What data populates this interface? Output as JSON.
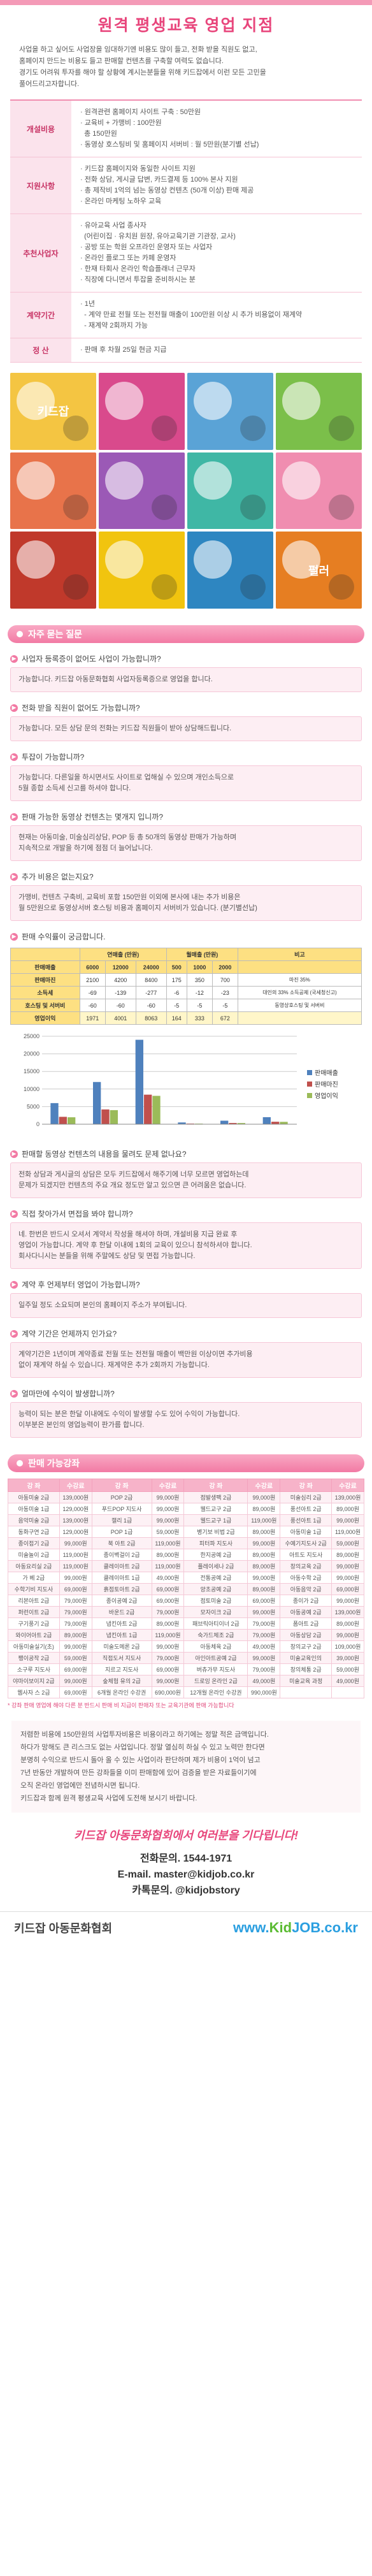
{
  "title": "원격 평생교육 영업 지점",
  "intro": [
    "사업을 하고 싶어도 사업장을 임대하기엔 비용도 많이 들고, 전화 받을 직원도 없고,",
    "홈페이지 만드는 비용도 들고 판매할 컨텐츠를 구축할 여력도 없습니다.",
    "경기도 어려워 투자를 해야 할 상황에 계시는분들을 위해 키드잡에서 이런 모든 고민을",
    "풀어드리고자합니다."
  ],
  "info": [
    {
      "label": "개설비용",
      "lines": [
        "· 원격관련 홈페이지 사이트 구축 : 50만원",
        "· 교육비 + 가맹비 : 100만원",
        "  총 150만원",
        "· 동영상 호스팅비 및 홈페이지 서버비 : 월 5만원(분기별 선납)"
      ]
    },
    {
      "label": "지원사항",
      "lines": [
        "· 키드잡 홈페이지와 동일한 사이트 지원",
        "· 전화 상담, 게시글 답변, 카드결제 등 100% 본사 지원",
        "· 총 제작비 1억의 넘는 동영상 컨텐츠 (50개 이상) 판매 제공",
        "· 온라인 마케팅 노하우 교육"
      ]
    },
    {
      "label": "추천사업자",
      "lines": [
        "· 유아교육 사업 종사자",
        "  (어린이집 · 유치원 원장, 유아교육기관 기관장, 교사)",
        "· 공방 또는 학원 오프라인 운영자 또는 사업자",
        "· 온라인 플로그 또는 카페 운영자",
        "· 한재 타회사 온라인 학습플래너 근무자",
        "· 직장에 다니면서 투잡을 준비하시는 분"
      ]
    },
    {
      "label": "계약기간",
      "lines": [
        "· 1년",
        "  - 계약 만료 전월 또는 전전월 매출이 100만원 이상 시 추가 비용없이 재계약",
        "  - 재계약 2회까지 가능"
      ]
    },
    {
      "label": "정 산",
      "lines": [
        "· 판매 후 차월 25일 현금 지급"
      ]
    }
  ],
  "photos": [
    {
      "label": "키드잡"
    },
    {
      "label": ""
    },
    {
      "label": ""
    },
    {
      "label": ""
    },
    {
      "label": ""
    },
    {
      "label": ""
    },
    {
      "label": ""
    },
    {
      "label": ""
    },
    {
      "label": ""
    },
    {
      "label": ""
    },
    {
      "label": ""
    },
    {
      "label": "펄러"
    }
  ],
  "faq_title": "자주 묻는 질문",
  "faq": [
    {
      "q": "사업자 등록증이 없어도 사업이 가능합니까?",
      "a": [
        "가능합니다. 키드잡 아동문화협회 사업자등록증으로 영업을 합니다."
      ]
    },
    {
      "q": "전화 받을 직원이 없어도 가능합니까?",
      "a": [
        "가능합니다. 모든 상담 문의 전화는 키드잡 직원들이 받아 상담해드립니다."
      ]
    },
    {
      "q": "투잡이 가능합니까?",
      "a": [
        "가능합니다. 다른일을 하시면서도 사이트로 업해실 수 있으며 개인소득으로",
        "5월 종합 소득세 신고를 하셔야 합니다."
      ]
    },
    {
      "q": "판매 가능한 동영상 컨텐츠는 몇개지 입니까?",
      "a": [
        "현재는 아동미술, 미술심리상담, POP 등 총 50개의 동영상 판매가 가능하며",
        "지속적으로 개발을 하기에 점점 더 늘어납니다."
      ]
    },
    {
      "q": "추가 비용은 없는지요?",
      "a": [
        "가맹비, 컨텐츠 구축비, 교육비 포함 150만원 이외에 본사에 내는 추가 비용은",
        "월 5만원으로 동영상서버 호스팅 비용과 홈페이지 서버비가 있습니다. (분기별선납)"
      ]
    }
  ],
  "revenue_q": "판매 수익률이 궁금합니다.",
  "revenue_table": {
    "group_headers": [
      "연매출 (만원)",
      "월매출 (만원)",
      "비고"
    ],
    "header": [
      "판매매출",
      "6000",
      "12000",
      "24000",
      "500",
      "1000",
      "2000",
      ""
    ],
    "rows": [
      [
        "판매마진",
        "2100",
        "4200",
        "8400",
        "175",
        "350",
        "700",
        "마진 35%"
      ],
      [
        "소득세",
        "-69",
        "-139",
        "-277",
        "-6",
        "-12",
        "-23",
        "대인의 33% 소득공제 (국세청신고)"
      ],
      [
        "호스팅 및 서버비",
        "-60",
        "-60",
        "-60",
        "-5",
        "-5",
        "-5",
        "동영상호스팅 및 서버비"
      ],
      [
        "영업이익",
        "1971",
        "4001",
        "8063",
        "164",
        "333",
        "672",
        ""
      ]
    ]
  },
  "chart_data": {
    "type": "bar",
    "categories": [
      "6000",
      "12000",
      "24000",
      "500",
      "1000",
      "2000"
    ],
    "series": [
      {
        "name": "판매매출",
        "values": [
          6000,
          12000,
          24000,
          500,
          1000,
          2000
        ],
        "color": "#4f81bd"
      },
      {
        "name": "판매마진",
        "values": [
          2100,
          4200,
          8400,
          175,
          350,
          700
        ],
        "color": "#c0504d"
      },
      {
        "name": "영업이익",
        "values": [
          1971,
          4001,
          8063,
          164,
          333,
          672
        ],
        "color": "#9bbb59"
      }
    ],
    "yticks": [
      "0",
      "5000",
      "10000",
      "15000",
      "20000",
      "25000"
    ],
    "ylim": [
      0,
      25000
    ]
  },
  "faq2": [
    {
      "q": "판매할 동영상 컨텐츠의 내용을 물려도 문제 없나요?",
      "a": [
        "전화 상담과 게시글의 상담은 모두 키드잡에서 해주기에 너무 모르면 영업하는데",
        "문제가 되겠지만 컨텐츠의 주요 개요 정도만 알고 있으면 큰 어려움은 없습니다."
      ]
    },
    {
      "q": "직접 찾아가서 면접을 봐야 합니까?",
      "a": [
        "네. 한번은 반드시 오셔서 계약서 작성을 해셔야 하며, 개설비용 지급 완료 후",
        "영업이 가능합니다. 계약 후 한달 이내에 1회의 교육이 있으니 참석하셔야 합니다.",
        "회사다니시는 분들을 위해 주말에도 상담 및 면접 가능합니다."
      ]
    },
    {
      "q": "계약 후 언제부터 영업이 가능합니까?",
      "a": [
        "일주일 정도 소요되며 본인의 홈페이지 주소가 부여됩니다."
      ]
    },
    {
      "q": "계약 기간은 언제까지 인가요?",
      "a": [
        "계약기간은 1년이며 계약종료 전월 또는 전전월 매출이 백만원 이상이면 추가비용",
        "없이 재계약 하실 수 있습니다. 재계약은 추가 2회까지 가능합니다."
      ]
    },
    {
      "q": "얼마만에 수익이 발생합니까?",
      "a": [
        "능력이 되는 분은 한달 이내에도 수익이 발생할 수도 있어 수익이 가능합니다.",
        "이부분은 본인의 영업능력이 판가름 합니다."
      ]
    }
  ],
  "courses_title": "판매 가능강좌",
  "courses_header": [
    "강 좌",
    "수강료",
    "강 좌",
    "수강료",
    "강 좌",
    "수강료",
    "강 좌",
    "수강료"
  ],
  "courses": [
    [
      "아동미술 2급",
      "139,000원",
      "POP 2급",
      "99,000원",
      "점발생팩 2급",
      "99,000원",
      "미술심리 2급",
      "139,000원"
    ],
    [
      "아동미술 1급",
      "129,000원",
      "푸드POP 지도사",
      "99,000원",
      "웰드교구 2급",
      "89,000원",
      "풍선아트 2급",
      "89,000원"
    ],
    [
      "음악미술 2급",
      "139,000원",
      "캘리 1급",
      "99,000원",
      "웰드교구 1급",
      "119,000원",
      "풍선아트 1급",
      "99,000원"
    ],
    [
      "동화구연 2급",
      "129,000원",
      "POP 1급",
      "59,000원",
      "병기보 비법 2급",
      "89,000원",
      "아동미술 1급",
      "119,000원"
    ],
    [
      "종이접기 2급",
      "99,000원",
      "북 아트 2급",
      "119,000원",
      "피터파 지도사",
      "99,000원",
      "수예기지도사 2급",
      "59,000원"
    ],
    [
      "미술놀이 2급",
      "119,000원",
      "종이벽걸이 2급",
      "89,000원",
      "한지공예 2급",
      "89,000원",
      "아트도 지도사",
      "89,000원"
    ],
    [
      "아동요리실 2급",
      "119,000원",
      "클레이아트 2급",
      "119,000원",
      "플레이세나 2급",
      "89,000원",
      "창의교육 2급",
      "99,000원"
    ],
    [
      "가 베 2급",
      "99,000원",
      "클레이아트 1급",
      "49,000원",
      "전통공예 2급",
      "99,000원",
      "아동수학 2급",
      "99,000원"
    ],
    [
      "수학기비 지도사",
      "69,000원",
      "흙점토아트 2급",
      "69,000원",
      "양초공예 2급",
      "89,000원",
      "아동음악 2급",
      "69,000원"
    ],
    [
      "리본아트 2급",
      "79,000원",
      "종이공예 2급",
      "69,000원",
      "점토미술 2급",
      "69,000원",
      "종이가 2급",
      "99,000원"
    ],
    [
      "퍼런이트 2급",
      "79,000원",
      "바운드 2급",
      "79,000원",
      "모자이크 2급",
      "99,000원",
      "아동공예 2급",
      "139,000원"
    ],
    [
      "구기풍기 2급",
      "79,000원",
      "냅킨아트 2급",
      "89,000원",
      "패브릭아티이너 2급",
      "79,000원",
      "폼아트 2급",
      "89,000원"
    ],
    [
      "와이어아트 2급",
      "89,000원",
      "냅킨아트 1급",
      "119,000원",
      "숙가드체조 2급",
      "79,000원",
      "아동상담 2급",
      "99,000원"
    ],
    [
      "아동미술실기(초)",
      "99,000원",
      "미술도메론 2급",
      "99,000원",
      "아동체육 2급",
      "49,000원",
      "창의교구 2급",
      "109,000원"
    ],
    [
      "팽이공작 2급",
      "59,000원",
      "직접도서 지도사",
      "79,000원",
      "아인아트공예 2급",
      "99,000원",
      "미술교육인의",
      "39,000원"
    ],
    [
      "소구루 지도사",
      "69,000원",
      "지르고 지도사",
      "69,000원",
      "버츄가무 지도사",
      "79,000원",
      "창의체통 2급",
      "59,000원"
    ],
    [
      "야마이보이지 2급",
      "99,000원",
      "숲체험 유의 2급",
      "99,000원",
      "드로잉 온라인 2급",
      "49,000원",
      "미술교육 과정",
      "49,000원"
    ],
    [
      "웹사자 스 2급",
      "69,000원",
      "6개월 온라인 수강권",
      "690,000원",
      "12개월 온라인 수강권",
      "990,000원",
      "",
      ""
    ]
  ],
  "courses_note": "* 강좌 판매 영업에 해야 다른 분 반드시 판매 비 지급이 판매자 또는 교육기관에 판매 가능합니다",
  "closing": [
    "저렴한 비용에 150만원의 사업투자비용은 비용이라고 하기에는 정말 적은 금액입니다.",
    "하다가 망해도 큰 리스크도 없는 사업입니다. 정말 열심히 하실 수 있고 노력만 한다면",
    "분명히 수익으로 반드시 돌아 올 수 있는 사업이라 판단하며 제가 비용이 1억이 넘고",
    "7년 반동안 개발하여 만든 강좌들을 이미 판매함에 있어 검증을 받은 자료들이기에",
    "오직 온라인 영업에만 전념하시면 됩니다.",
    "키드잡과 함께 원격 평생교육 사업에 도전해 보시기 바랍니다."
  ],
  "slogan": "키드잡 아동문화협회에서 여러분을 기다립니다!",
  "contact": [
    {
      "label": "전화문의.",
      "value": "1544-1971"
    },
    {
      "label": "E-mail.",
      "value": "master@kidjob.co.kr"
    },
    {
      "label": "카톡문의.",
      "value": "@kidjobstory"
    }
  ],
  "footer_left": "키드잡 아동문화협회",
  "footer_url_prefix": "www.",
  "footer_logo_k": "Kid",
  "footer_logo_rest": "JOB.co.kr"
}
